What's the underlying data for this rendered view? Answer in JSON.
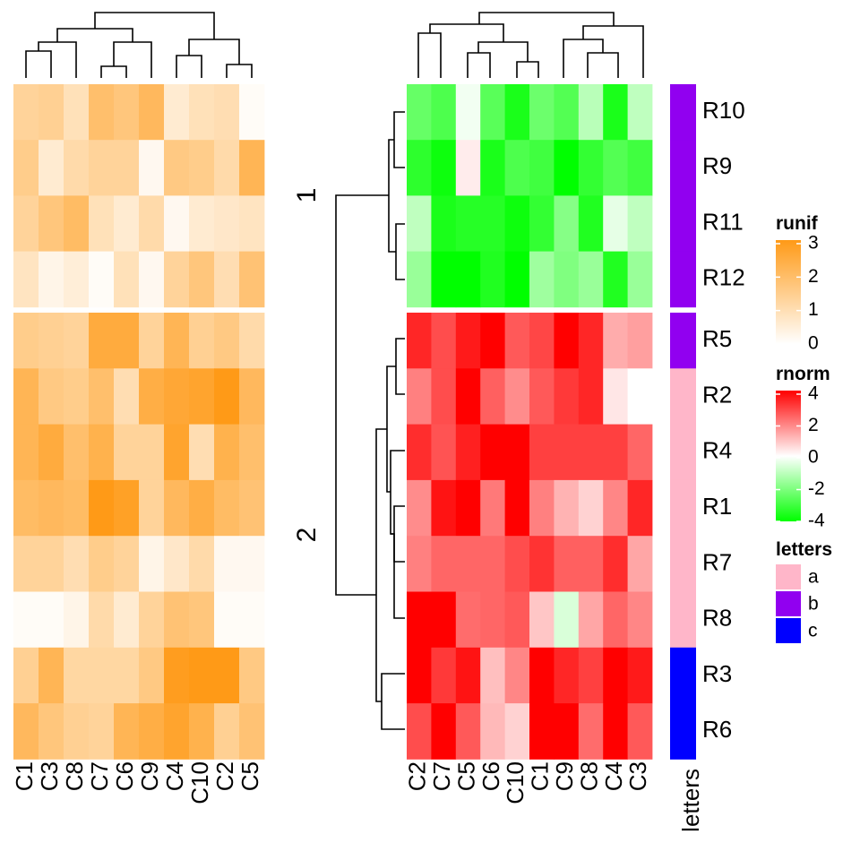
{
  "chart_data": [
    {
      "type": "heatmap",
      "name": "runif",
      "columns": [
        "C1",
        "C3",
        "C8",
        "C7",
        "C6",
        "C9",
        "C4",
        "C10",
        "C2",
        "C5"
      ],
      "row_order": [
        "R10",
        "R9",
        "R11",
        "R12",
        "R5",
        "R2",
        "R4",
        "R1",
        "R7",
        "R8",
        "R3",
        "R6"
      ],
      "values": [
        [
          1.3,
          1.4,
          0.9,
          1.9,
          1.7,
          2.1,
          0.6,
          0.9,
          1.0,
          0.1
        ],
        [
          1.5,
          0.6,
          1.1,
          1.3,
          1.3,
          0.2,
          1.6,
          1.5,
          1.1,
          2.2
        ],
        [
          1.3,
          1.7,
          2.0,
          0.9,
          0.6,
          1.1,
          0.2,
          0.6,
          0.7,
          0.8
        ],
        [
          0.8,
          0.3,
          0.5,
          0.1,
          0.9,
          0.2,
          1.3,
          1.7,
          1.0,
          1.8
        ],
        [
          1.5,
          1.4,
          1.3,
          2.5,
          2.5,
          1.3,
          2.2,
          1.4,
          1.6,
          1.1
        ],
        [
          2.2,
          1.6,
          1.5,
          1.9,
          1.0,
          2.4,
          2.6,
          2.7,
          3.0,
          2.1
        ],
        [
          2.2,
          2.5,
          1.9,
          2.3,
          1.3,
          1.3,
          2.7,
          1.0,
          2.3,
          1.9
        ],
        [
          2.0,
          2.1,
          2.0,
          3.0,
          2.8,
          1.3,
          2.1,
          2.4,
          2.0,
          1.8
        ],
        [
          1.3,
          1.3,
          1.0,
          1.5,
          1.3,
          0.3,
          0.7,
          1.1,
          0.2,
          0.2
        ],
        [
          0.1,
          0.1,
          0.3,
          1.1,
          0.6,
          1.3,
          1.8,
          1.7,
          0.1,
          0.1
        ],
        [
          1.4,
          2.2,
          1.2,
          1.2,
          1.2,
          1.6,
          2.9,
          3.0,
          3.0,
          1.6
        ],
        [
          2.1,
          1.7,
          1.4,
          1.3,
          2.2,
          2.4,
          2.7,
          2.3,
          1.4,
          1.8
        ]
      ],
      "legend": {
        "title": "runif",
        "ticks": [
          3,
          2,
          1,
          0
        ],
        "colors": [
          "#FF9A17",
          "#FFFFFF"
        ]
      }
    },
    {
      "type": "heatmap",
      "name": "rnorm",
      "columns": [
        "C2",
        "C7",
        "C5",
        "C6",
        "C10",
        "C1",
        "C9",
        "C8",
        "C4",
        "C3"
      ],
      "rows": [
        "R10",
        "R9",
        "R11",
        "R12",
        "R5",
        "R2",
        "R4",
        "R1",
        "R7",
        "R8",
        "R3",
        "R6"
      ],
      "split_labels": [
        "1",
        "2"
      ],
      "values": [
        [
          -2.4,
          -2.8,
          -0.2,
          -2.6,
          -3.6,
          -2.3,
          -2.7,
          -1.1,
          -3.6,
          -1.0
        ],
        [
          -3.3,
          -3.8,
          0.3,
          -3.6,
          -2.8,
          -3.0,
          -4.2,
          -3.2,
          -2.7,
          -3.0
        ],
        [
          -1.0,
          -3.6,
          -3.4,
          -3.4,
          -3.8,
          -3.2,
          -1.9,
          -3.5,
          -0.4,
          -1.0
        ],
        [
          -1.6,
          -4.3,
          -4.3,
          -3.5,
          -4.2,
          -1.5,
          -2.0,
          -1.6,
          -3.5,
          -1.6
        ],
        [
          3.4,
          2.8,
          3.6,
          4.3,
          2.6,
          2.9,
          4.3,
          3.4,
          1.3,
          1.5
        ],
        [
          2.0,
          2.8,
          4.2,
          2.5,
          1.8,
          2.6,
          3.1,
          3.4,
          0.4,
          0.0
        ],
        [
          3.3,
          2.7,
          3.5,
          4.3,
          4.3,
          3.0,
          3.0,
          3.0,
          3.0,
          2.4
        ],
        [
          1.8,
          3.7,
          4.0,
          2.1,
          4.3,
          2.0,
          1.2,
          0.7,
          1.9,
          3.4
        ],
        [
          2.0,
          2.4,
          2.4,
          2.4,
          2.8,
          3.2,
          2.5,
          2.5,
          3.3,
          1.4
        ],
        [
          4.2,
          4.2,
          2.3,
          2.4,
          2.6,
          0.9,
          -0.6,
          1.4,
          2.4,
          1.9
        ],
        [
          4.3,
          3.1,
          3.7,
          1.0,
          1.9,
          4.3,
          3.4,
          3.0,
          4.1,
          3.6
        ],
        [
          2.8,
          4.3,
          2.6,
          1.1,
          0.7,
          4.3,
          4.3,
          2.3,
          4.3,
          2.6
        ]
      ],
      "legend": {
        "title": "rnorm",
        "ticks": [
          4,
          2,
          0,
          -2,
          -4
        ],
        "colors": [
          "#FF0000",
          "#FFFFFF",
          "#00FF00"
        ]
      }
    }
  ],
  "row_labels": [
    "R10",
    "R9",
    "R11",
    "R12",
    "R5",
    "R2",
    "R4",
    "R1",
    "R7",
    "R8",
    "R3",
    "R6"
  ],
  "annotation": {
    "name": "letters",
    "values": [
      "b",
      "b",
      "b",
      "b",
      "b",
      "a",
      "a",
      "a",
      "a",
      "a",
      "c",
      "c"
    ],
    "legend": {
      "title": "letters",
      "items": [
        {
          "label": "a",
          "color": "#FFB6C9"
        },
        {
          "label": "b",
          "color": "#9100F0"
        },
        {
          "label": "c",
          "color": "#0000FF"
        }
      ]
    }
  }
}
